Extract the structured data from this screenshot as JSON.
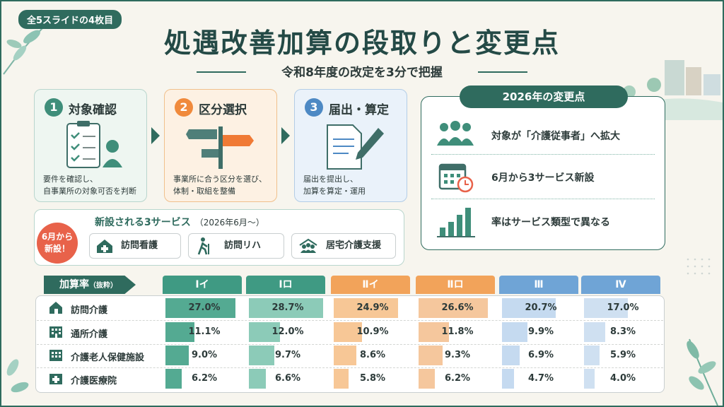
{
  "header": {
    "slide_badge": "全5スライドの4枚目",
    "title": "処遇改善加算の段取りと変更点",
    "subtitle": "令和8年度の改定を3分で把握"
  },
  "steps": [
    {
      "num": "1",
      "name": "対象確認",
      "desc1": "要件を確認し、",
      "desc2": "自事業所の対象可否を判断",
      "color": "#3f8e7a",
      "bg": "#eef6f1",
      "border": "#b9d6cd"
    },
    {
      "num": "2",
      "name": "区分選択",
      "desc1": "事業所に合う区分を選び、",
      "desc2": "体制・取組を整備",
      "color": "#f08a3c",
      "bg": "#fdf1e3",
      "border": "#f0c08c"
    },
    {
      "num": "3",
      "name": "届出・算定",
      "desc1": "届出を提出し、",
      "desc2": "加算を算定・運用",
      "color": "#4d89c4",
      "bg": "#eaf2fa",
      "border": "#b3cde6"
    }
  ],
  "new_services": {
    "badge1": "6月から",
    "badge2": "新設！",
    "title": "新設される3サービス",
    "title_note": "（2026年6月〜）",
    "items": [
      "訪問看護",
      "訪問リハ",
      "居宅介護支援"
    ]
  },
  "changes": {
    "title": "2026年の変更点",
    "items": [
      "対象が「介護従事者」へ拡大",
      "6月から3サービス新設",
      "率はサービス類型で異なる"
    ]
  },
  "rates": {
    "label": "加算率",
    "label_note": "（抜粋）",
    "columns": [
      {
        "name": "Ⅰイ",
        "color": "#3f9a83",
        "fill": "#54aa92"
      },
      {
        "name": "Ⅰロ",
        "color": "#3f9a83",
        "fill": "#8ccbb8"
      },
      {
        "name": "Ⅱイ",
        "color": "#f2a35a",
        "fill": "#f7c796"
      },
      {
        "name": "Ⅱロ",
        "color": "#f2a35a",
        "fill": "#f5c79d"
      },
      {
        "name": "Ⅲ",
        "color": "#6fa4d6",
        "fill": "#c5daf0"
      },
      {
        "name": "Ⅳ",
        "color": "#6fa4d6",
        "fill": "#cfe0f1"
      }
    ],
    "rows": [
      {
        "name": "訪問介護",
        "values": [
          "27.0%",
          "28.7%",
          "24.9%",
          "26.6%",
          "20.7%",
          "17.0%"
        ]
      },
      {
        "name": "通所介護",
        "values": [
          "11.1%",
          "12.0%",
          "10.9%",
          "11.8%",
          "9.9%",
          "8.3%"
        ]
      },
      {
        "name": "介護老人保健施設",
        "values": [
          "9.0%",
          "9.7%",
          "8.6%",
          "9.3%",
          "6.9%",
          "5.9%"
        ]
      },
      {
        "name": "介護医療院",
        "values": [
          "6.2%",
          "6.6%",
          "5.8%",
          "6.2%",
          "4.7%",
          "4.0%"
        ]
      }
    ]
  }
}
